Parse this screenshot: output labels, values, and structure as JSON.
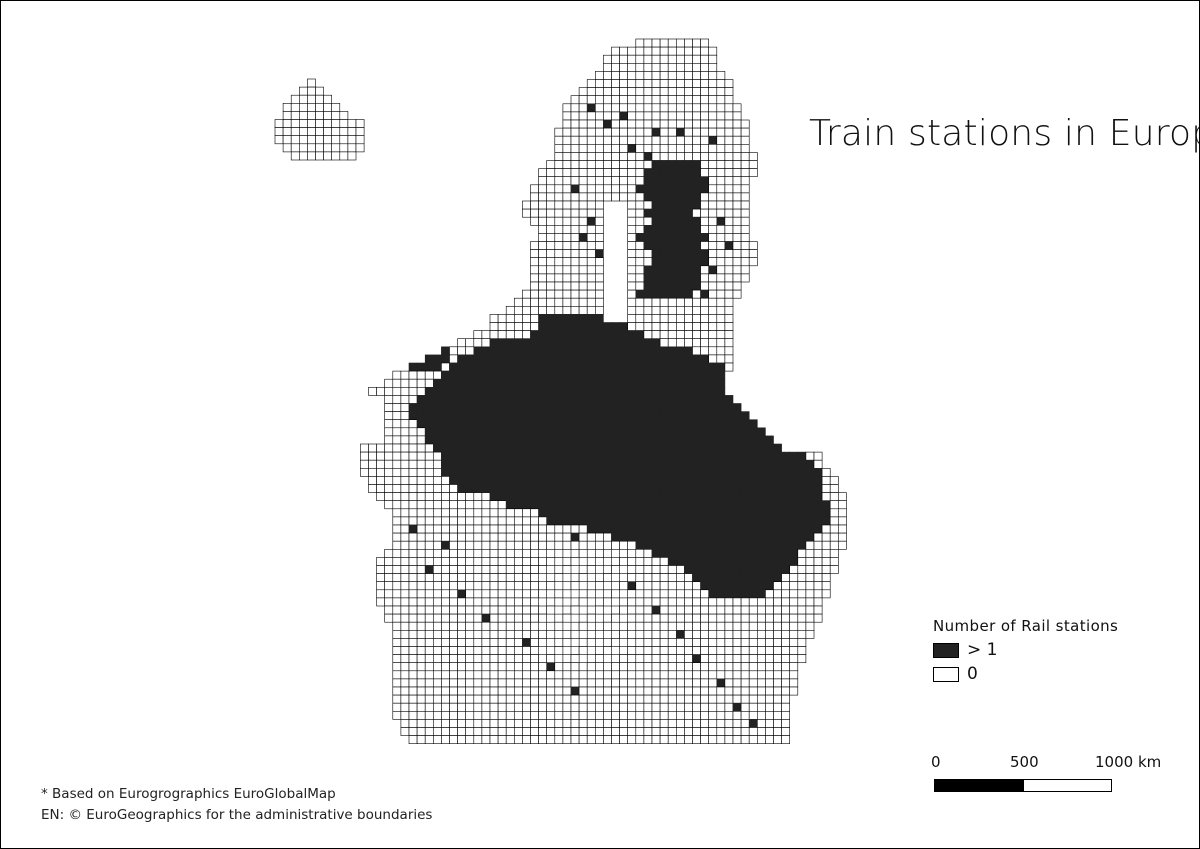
{
  "title": "Train stations in Europe*",
  "legend": {
    "title": "Number of Rail stations",
    "items": [
      {
        "label": "> 1",
        "color": "#222222"
      },
      {
        "label": "0",
        "color": "#ffffff"
      }
    ]
  },
  "scale_bar": {
    "labels": [
      "0",
      "500",
      "1000 km"
    ]
  },
  "footnotes": [
    "* Based on Eurogrographics EuroGlobalMap",
    "EN: © EuroGeographics for the administrative boundaries"
  ],
  "map": {
    "filled_color": "#222222",
    "empty_color": "#ffffff",
    "grid_line_color": "#000000"
  }
}
